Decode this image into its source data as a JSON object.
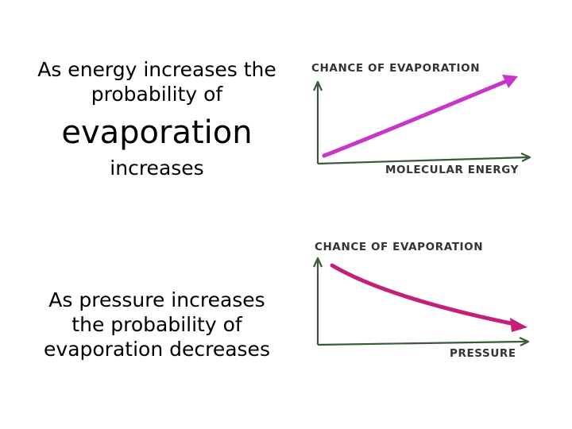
{
  "captions": {
    "energy": {
      "line1": "As energy increases the",
      "line2": "probability of",
      "line3": "evaporation",
      "line4": "increases"
    },
    "pressure": {
      "line1": "As pressure increases",
      "line2": "the probability of",
      "line3": "evaporation decreases"
    }
  },
  "graphs": {
    "energy": {
      "y_label": "CHANCE OF EVAPORATION",
      "x_label": "MOLECULAR ENERGY",
      "trend": "increasing"
    },
    "pressure": {
      "y_label": "CHANCE OF EVAPORATION",
      "x_label": "PRESSURE",
      "trend": "decreasing"
    }
  },
  "colors": {
    "text": "#000000",
    "axis": "#3a5a3a",
    "trend_line_energy": "#c835c8",
    "trend_line_pressure": "#c4207a"
  }
}
